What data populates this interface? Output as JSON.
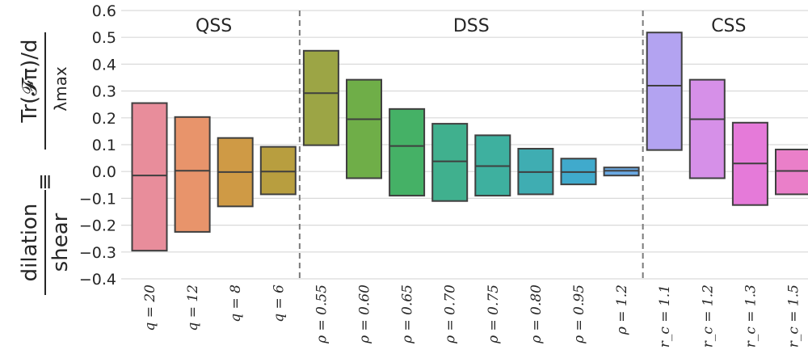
{
  "chart_data": {
    "type": "box",
    "ylim": [
      -0.4,
      0.6
    ],
    "yticks": [
      "−0.4",
      "−0.3",
      "−0.2",
      "−0.1",
      "0.0",
      "0.1",
      "0.2",
      "0.3",
      "0.4",
      "0.5",
      "0.6"
    ],
    "yticks_values": [
      -0.4,
      -0.3,
      -0.2,
      -0.1,
      0.0,
      0.1,
      0.2,
      0.3,
      0.4,
      0.5,
      0.6
    ],
    "ylabel": {
      "left_num": "dilation",
      "left_den": "shear",
      "equiv": "≡",
      "right_num": "Tr(𝓕π)/d",
      "right_den": "λmax"
    },
    "grid": true,
    "groups": [
      {
        "label": "QSS",
        "start": 0,
        "end": 3
      },
      {
        "label": "DSS",
        "start": 4,
        "end": 11
      },
      {
        "label": "CSS",
        "start": 12,
        "end": 15
      }
    ],
    "categories": [
      "q = 20",
      "q = 12",
      "q = 8",
      "q = 6",
      "ρ = 0.55",
      "ρ = 0.60",
      "ρ = 0.65",
      "ρ = 0.70",
      "ρ = 0.75",
      "ρ = 0.80",
      "ρ = 0.95",
      "ρ = 1.2",
      "r_c = 1.1",
      "r_c = 1.2",
      "r_c = 1.3",
      "r_c = 1.5"
    ],
    "boxes": [
      {
        "low": -0.295,
        "median": -0.015,
        "high": 0.255,
        "color": "#e88d9b"
      },
      {
        "low": -0.225,
        "median": 0.003,
        "high": 0.203,
        "color": "#e8946b"
      },
      {
        "low": -0.13,
        "median": -0.002,
        "high": 0.125,
        "color": "#cf9a45"
      },
      {
        "low": -0.085,
        "median": 0.0,
        "high": 0.092,
        "color": "#b89e3f"
      },
      {
        "low": 0.098,
        "median": 0.292,
        "high": 0.45,
        "color": "#9ca545"
      },
      {
        "low": -0.025,
        "median": 0.195,
        "high": 0.342,
        "color": "#6fae48"
      },
      {
        "low": -0.09,
        "median": 0.095,
        "high": 0.233,
        "color": "#45b166"
      },
      {
        "low": -0.11,
        "median": 0.038,
        "high": 0.178,
        "color": "#40b08e"
      },
      {
        "low": -0.09,
        "median": 0.02,
        "high": 0.135,
        "color": "#3eb09f"
      },
      {
        "low": -0.085,
        "median": -0.002,
        "high": 0.085,
        "color": "#3fadb2"
      },
      {
        "low": -0.048,
        "median": -0.002,
        "high": 0.048,
        "color": "#40aacc"
      },
      {
        "low": -0.015,
        "median": 0.003,
        "high": 0.015,
        "color": "#6aa9e3"
      },
      {
        "low": 0.08,
        "median": 0.32,
        "high": 0.518,
        "color": "#b3a3f1"
      },
      {
        "low": -0.025,
        "median": 0.195,
        "high": 0.342,
        "color": "#d690e8"
      },
      {
        "low": -0.125,
        "median": 0.03,
        "high": 0.182,
        "color": "#e57ad9"
      },
      {
        "low": -0.085,
        "median": 0.002,
        "high": 0.082,
        "color": "#ea7fc9"
      }
    ]
  }
}
